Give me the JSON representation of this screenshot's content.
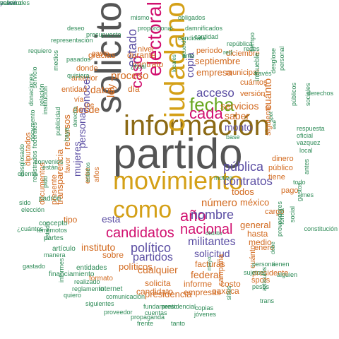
{
  "palette": {
    "green": "#2e8b57",
    "orange": "#d2691e",
    "purple": "#5b4ea3",
    "magenta": "#d1106f",
    "lime": "#66a61e",
    "gold": "#d4a017",
    "brown": "#8b6914",
    "gray": "#555555"
  },
  "words": [
    {
      "text": "partido",
      "color": "gray"
    },
    {
      "text": "información",
      "color": "brown"
    },
    {
      "text": "solicito",
      "color": "gray"
    },
    {
      "text": "movimiento",
      "color": "gold"
    },
    {
      "text": "ciudadano",
      "color": "gold"
    },
    {
      "text": "como",
      "color": "gold"
    },
    {
      "text": "fecha",
      "color": "lime"
    },
    {
      "text": "nacional",
      "color": "magenta"
    },
    {
      "text": "electoral",
      "color": "magenta"
    },
    {
      "text": "cada",
      "color": "magenta"
    },
    {
      "text": "candidatos",
      "color": "magenta"
    },
    {
      "text": "año",
      "color": "magenta"
    },
    {
      "text": "nombre",
      "color": "purple"
    },
    {
      "text": "político",
      "color": "purple"
    },
    {
      "text": "caso",
      "color": "magenta"
    },
    {
      "text": "pública",
      "color": "purple"
    },
    {
      "text": "contratos",
      "color": "purple"
    },
    {
      "text": "partidos",
      "color": "purple"
    },
    {
      "text": "militantes",
      "color": "purple"
    },
    {
      "text": "estado",
      "color": "purple"
    },
    {
      "text": "acceso",
      "color": "purple"
    },
    {
      "text": "número",
      "color": "orange"
    },
    {
      "text": "cuánto",
      "color": "orange"
    },
    {
      "text": "ley",
      "color": "orange"
    },
    {
      "text": "proceso",
      "color": "orange"
    },
    {
      "text": "copia",
      "color": "purple"
    },
    {
      "text": "conocer",
      "color": "purple"
    },
    {
      "text": "desde",
      "color": "orange"
    },
    {
      "text": "datos",
      "color": "orange"
    },
    {
      "text": "instituto",
      "color": "orange"
    },
    {
      "text": "personas",
      "color": "purple"
    },
    {
      "text": "solicitud",
      "color": "purple"
    },
    {
      "text": "monto",
      "color": "purple"
    },
    {
      "text": "saber",
      "color": "orange"
    },
    {
      "text": "servicios",
      "color": "orange"
    },
    {
      "text": "todos",
      "color": "orange"
    },
    {
      "text": "esta",
      "color": "purple"
    },
    {
      "text": "mujeres",
      "color": "purple"
    },
    {
      "text": "cualquier",
      "color": "orange"
    },
    {
      "text": "federal",
      "color": "orange"
    },
    {
      "text": "general",
      "color": "orange"
    },
    {
      "text": "méxico",
      "color": "orange"
    },
    {
      "text": "políticos",
      "color": "orange"
    },
    {
      "text": "empresa",
      "color": "orange"
    },
    {
      "text": "presidencia",
      "color": "orange"
    },
    {
      "text": "recursos",
      "color": "orange"
    },
    {
      "text": "transparencia",
      "color": "orange"
    },
    {
      "text": "septiembre",
      "color": "orange"
    },
    {
      "text": "contrato",
      "color": "orange"
    },
    {
      "text": "durante",
      "color": "orange"
    },
    {
      "text": "gracias",
      "color": "orange"
    },
    {
      "text": "nivel",
      "color": "orange"
    },
    {
      "text": "día",
      "color": "orange"
    },
    {
      "text": "hasta",
      "color": "orange"
    },
    {
      "text": "medio",
      "color": "orange"
    },
    {
      "text": "facturas",
      "color": "orange"
    },
    {
      "text": "informe",
      "color": "orange"
    },
    {
      "text": "costo",
      "color": "orange"
    },
    {
      "text": "oaxaca",
      "color": "orange"
    },
    {
      "text": "empresas",
      "color": "orange"
    },
    {
      "text": "solicita",
      "color": "orange"
    },
    {
      "text": "candidato",
      "color": "orange"
    },
    {
      "text": "sobre",
      "color": "orange"
    },
    {
      "text": "tipo",
      "color": "orange"
    },
    {
      "text": "presente",
      "color": "orange"
    },
    {
      "text": "documentos",
      "color": "orange"
    },
    {
      "text": "diputados",
      "color": "orange"
    },
    {
      "text": "entidad",
      "color": "orange"
    },
    {
      "text": "anterior",
      "color": "orange"
    },
    {
      "text": "donde",
      "color": "orange"
    },
    {
      "text": "periodo",
      "color": "orange"
    },
    {
      "text": "diciembre",
      "color": "orange"
    },
    {
      "text": "municipal",
      "color": "orange"
    },
    {
      "text": "versión",
      "color": "orange"
    },
    {
      "text": "cuántos",
      "color": "orange"
    },
    {
      "text": "siguiente",
      "color": "orange"
    },
    {
      "text": "dinero",
      "color": "orange"
    },
    {
      "text": "público",
      "color": "orange"
    },
    {
      "text": "tiene",
      "color": "orange"
    },
    {
      "text": "cargo",
      "color": "orange"
    },
    {
      "text": "pago",
      "color": "orange"
    },
    {
      "text": "campaña",
      "color": "orange"
    },
    {
      "text": "cuánto",
      "color": "orange"
    },
    {
      "text": "presidente",
      "color": "orange"
    },
    {
      "text": "enero",
      "color": "orange"
    },
    {
      "text": "spots",
      "color": "orange"
    },
    {
      "text": "entre",
      "color": "orange"
    },
    {
      "text": "años",
      "color": "orange"
    },
    {
      "text": "favor",
      "color": "orange"
    },
    {
      "text": "vía",
      "color": "orange"
    },
    {
      "text": "ine",
      "color": "orange"
    },
    {
      "text": "formato",
      "color": "orange"
    },
    {
      "text": "gasto",
      "color": "orange"
    },
    {
      "text": "internet",
      "color": "green"
    },
    {
      "text": "entidades",
      "color": "green"
    },
    {
      "text": "financiamiento",
      "color": "green"
    },
    {
      "text": "artículo",
      "color": "green"
    },
    {
      "text": "partes",
      "color": "green"
    },
    {
      "text": "concepto",
      "color": "green"
    },
    {
      "text": "padrón",
      "color": "green"
    },
    {
      "text": "pido",
      "color": "green"
    },
    {
      "text": "registrados",
      "color": "green"
    },
    {
      "text": "publicidad",
      "color": "green"
    },
    {
      "text": "institución",
      "color": "green"
    },
    {
      "text": "relación",
      "color": "green"
    },
    {
      "text": "medios",
      "color": "green"
    },
    {
      "text": "requiero",
      "color": "green"
    },
    {
      "text": "representación",
      "color": "green"
    },
    {
      "text": "presupuesto",
      "color": "green"
    },
    {
      "text": "deseo",
      "color": "green"
    },
    {
      "text": "mismo",
      "color": "green"
    },
    {
      "text": "proporcional",
      "color": "green"
    },
    {
      "text": "obligados",
      "color": "green"
    },
    {
      "text": "damnificados",
      "color": "green"
    },
    {
      "text": "cantidad",
      "color": "green"
    },
    {
      "text": "candidata",
      "color": "green"
    },
    {
      "text": "república",
      "color": "green"
    },
    {
      "text": "red",
      "color": "green"
    },
    {
      "text": "tiempo",
      "color": "green"
    },
    {
      "text": "redes",
      "color": "green"
    },
    {
      "text": "través",
      "color": "green"
    },
    {
      "text": "desglose",
      "color": "green"
    },
    {
      "text": "personal",
      "color": "green"
    },
    {
      "text": "derechos",
      "color": "green"
    },
    {
      "text": "respuesta",
      "color": "green"
    },
    {
      "text": "oficial",
      "color": "green"
    },
    {
      "text": "vazquez",
      "color": "green"
    },
    {
      "text": "sociales",
      "color": "green"
    },
    {
      "text": "públicos",
      "color": "green"
    },
    {
      "text": "local",
      "color": "green"
    },
    {
      "text": "todo",
      "color": "green"
    },
    {
      "text": "antes",
      "color": "green"
    },
    {
      "text": "mes",
      "color": "green"
    },
    {
      "text": "gastos",
      "color": "green"
    },
    {
      "text": "constitución",
      "color": "green"
    },
    {
      "text": "social",
      "color": "green"
    },
    {
      "text": "forma",
      "color": "green"
    },
    {
      "text": "proveedores",
      "color": "green"
    },
    {
      "text": "tienen",
      "color": "green"
    },
    {
      "text": "alguien",
      "color": "green"
    },
    {
      "text": "persona",
      "color": "green"
    },
    {
      "text": "sujetos",
      "color": "green"
    },
    {
      "text": "pesos",
      "color": "green"
    },
    {
      "text": "trans",
      "color": "green"
    },
    {
      "text": "artículos",
      "color": "green"
    },
    {
      "text": "sitios",
      "color": "green"
    },
    {
      "text": "copias",
      "color": "green"
    },
    {
      "text": "jóvenes",
      "color": "green"
    },
    {
      "text": "frente",
      "color": "green"
    },
    {
      "text": "tanto",
      "color": "green"
    },
    {
      "text": "propaganda",
      "color": "green"
    },
    {
      "text": "proveedor",
      "color": "green"
    },
    {
      "text": "cuentas",
      "color": "green"
    },
    {
      "text": "fundamento",
      "color": "green"
    },
    {
      "text": "presidencial",
      "color": "green"
    },
    {
      "text": "siguientes",
      "color": "green"
    },
    {
      "text": "quiero",
      "color": "green"
    },
    {
      "text": "comunicación",
      "color": "green"
    },
    {
      "text": "informes",
      "color": "green"
    },
    {
      "text": "reglamento",
      "color": "green"
    },
    {
      "text": "realizado",
      "color": "green"
    },
    {
      "text": "gastado",
      "color": "green"
    },
    {
      "text": "manera",
      "color": "green"
    },
    {
      "text": "listado",
      "color": "green"
    },
    {
      "text": "terremotos",
      "color": "green"
    },
    {
      "text": "¿cuántos",
      "color": "green"
    },
    {
      "text": "elección",
      "color": "green"
    },
    {
      "text": "sido",
      "color": "green"
    },
    {
      "text": "desglosado",
      "color": "green"
    },
    {
      "text": "cuenta",
      "color": "green"
    },
    {
      "text": "están",
      "color": "green"
    },
    {
      "text": "convenios",
      "color": "green"
    },
    {
      "text": "haya",
      "color": "green"
    },
    {
      "text": "federales",
      "color": "green"
    },
    {
      "text": "documento",
      "color": "green"
    },
    {
      "text": "donaciones",
      "color": "green"
    },
    {
      "text": "servicio",
      "color": "green"
    },
    {
      "text": "pasados",
      "color": "green"
    },
    {
      "text": "quisiera",
      "color": "green"
    },
    {
      "text": "¿cuál",
      "color": "green"
    },
    {
      "text": "ante",
      "color": "green"
    },
    {
      "text": "acuerdo",
      "color": "green"
    },
    {
      "text": "locales",
      "color": "green"
    },
    {
      "text": "ese",
      "color": "green"
    },
    {
      "text": "spot",
      "color": "green"
    },
    {
      "text": "motivo",
      "color": "green"
    },
    {
      "text": "base",
      "color": "green"
    },
    {
      "text": "distrito",
      "color": "green"
    },
    {
      "text": "derecho",
      "color": "green"
    },
    {
      "text": "estados",
      "color": "green"
    },
    {
      "text": "inmueble",
      "color": "green"
    },
    {
      "text": "mayo",
      "color": "green"
    },
    {
      "text": "debe",
      "color": "green"
    },
    {
      "text": "yuawi",
      "color": "purple"
    },
    {
      "text": "navarro",
      "color": "green"
    },
    {
      "text": "solicitudes",
      "color": "green"
    }
  ]
}
